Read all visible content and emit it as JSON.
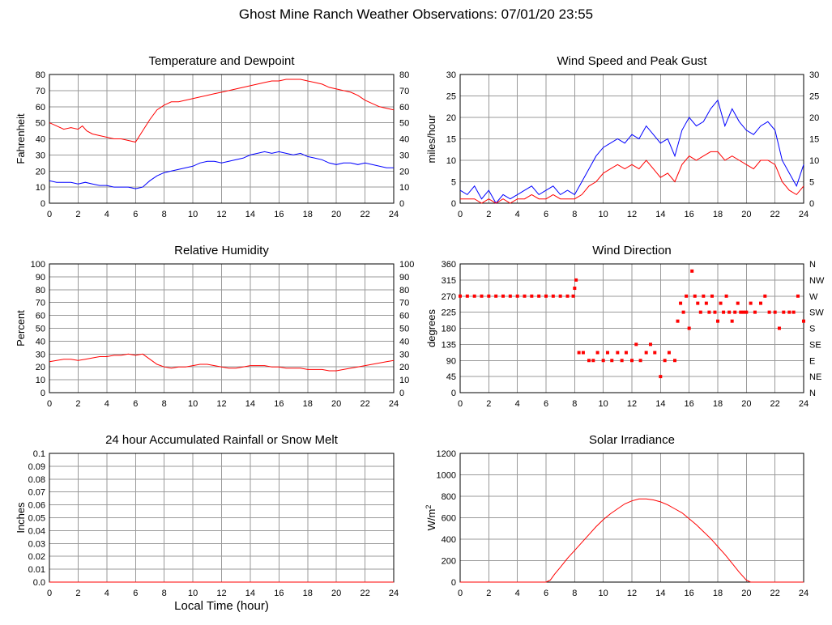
{
  "title": "Ghost Mine Ranch Weather Observations: 07/01/20 23:55",
  "chart_data": [
    {
      "id": "tempdew",
      "type": "line",
      "title": "Temperature and Dewpoint",
      "ylabel": "Fahrenheit",
      "xlabel": "",
      "xlim": [
        0,
        24
      ],
      "ylim": [
        0,
        80
      ],
      "xticks": [
        0,
        2,
        4,
        6,
        8,
        10,
        12,
        14,
        16,
        18,
        20,
        22,
        24
      ],
      "yticks": [
        0,
        10,
        20,
        30,
        40,
        50,
        60,
        70,
        80
      ],
      "right_yticks": [
        0,
        10,
        20,
        30,
        40,
        50,
        60,
        70,
        80
      ],
      "grid": true,
      "series": [
        {
          "color": "#ff0000",
          "x": [
            0,
            0.5,
            1,
            1.5,
            2,
            2.3,
            2.6,
            3,
            3.5,
            4,
            4.5,
            5,
            5.5,
            6,
            6.5,
            7,
            7.5,
            8,
            8.5,
            9,
            9.5,
            10,
            10.5,
            11,
            11.5,
            12,
            12.5,
            13,
            13.5,
            14,
            14.5,
            15,
            15.5,
            16,
            16.5,
            17,
            17.5,
            18,
            18.5,
            19,
            19.5,
            20,
            20.5,
            21,
            21.5,
            22,
            22.5,
            23,
            23.5,
            24
          ],
          "y": [
            50,
            48,
            46,
            47,
            46,
            48,
            45,
            43,
            42,
            41,
            40,
            40,
            39,
            38,
            45,
            52,
            58,
            61,
            63,
            63,
            64,
            65,
            66,
            67,
            68,
            69,
            70,
            71,
            72,
            73,
            74,
            75,
            76,
            76,
            77,
            77,
            77,
            76,
            75,
            74,
            72,
            71,
            70,
            69,
            67,
            64,
            62,
            60,
            59,
            58
          ]
        },
        {
          "color": "#0000ff",
          "x": [
            0,
            0.5,
            1,
            1.5,
            2,
            2.5,
            3,
            3.5,
            4,
            4.5,
            5,
            5.5,
            6,
            6.5,
            7,
            7.5,
            8,
            8.5,
            9,
            9.5,
            10,
            10.5,
            11,
            11.5,
            12,
            12.5,
            13,
            13.5,
            14,
            14.5,
            15,
            15.5,
            16,
            16.5,
            17,
            17.5,
            18,
            18.5,
            19,
            19.5,
            20,
            20.5,
            21,
            21.5,
            22,
            22.5,
            23,
            23.5,
            24
          ],
          "y": [
            14,
            13,
            13,
            13,
            12,
            13,
            12,
            11,
            11,
            10,
            10,
            10,
            9,
            10,
            14,
            17,
            19,
            20,
            21,
            22,
            23,
            25,
            26,
            26,
            25,
            26,
            27,
            28,
            30,
            31,
            32,
            31,
            32,
            31,
            30,
            31,
            29,
            28,
            27,
            25,
            24,
            25,
            25,
            24,
            25,
            24,
            23,
            22,
            22
          ]
        }
      ]
    },
    {
      "id": "wind",
      "type": "line",
      "title": "Wind Speed and Peak Gust",
      "ylabel": "miles/hour",
      "xlabel": "",
      "xlim": [
        0,
        24
      ],
      "ylim": [
        0,
        30
      ],
      "xticks": [
        0,
        2,
        4,
        6,
        8,
        10,
        12,
        14,
        16,
        18,
        20,
        22,
        24
      ],
      "yticks": [
        0,
        5,
        10,
        15,
        20,
        25,
        30
      ],
      "right_yticks": [
        0,
        5,
        10,
        15,
        20,
        25,
        30
      ],
      "grid": true,
      "series": [
        {
          "color": "#0000ff",
          "x": [
            0,
            0.5,
            1,
            1.5,
            2,
            2.5,
            3,
            3.5,
            4,
            4.5,
            5,
            5.5,
            6,
            6.5,
            7,
            7.5,
            8,
            8.5,
            9,
            9.5,
            10,
            10.5,
            11,
            11.5,
            12,
            12.5,
            13,
            13.5,
            14,
            14.5,
            15,
            15.5,
            16,
            16.5,
            17,
            17.5,
            18,
            18.5,
            19,
            19.5,
            20,
            20.5,
            21,
            21.5,
            22,
            22.5,
            23,
            23.5,
            24
          ],
          "y": [
            3,
            2,
            4,
            1,
            3,
            0,
            2,
            1,
            2,
            3,
            4,
            2,
            3,
            4,
            2,
            3,
            2,
            5,
            8,
            11,
            13,
            14,
            15,
            14,
            16,
            15,
            18,
            16,
            14,
            15,
            11,
            17,
            20,
            18,
            19,
            22,
            24,
            18,
            22,
            19,
            17,
            16,
            18,
            19,
            17,
            10,
            7,
            4,
            9
          ]
        },
        {
          "color": "#ff0000",
          "x": [
            0,
            0.5,
            1,
            1.5,
            2,
            2.5,
            3,
            3.5,
            4,
            4.5,
            5,
            5.5,
            6,
            6.5,
            7,
            7.5,
            8,
            8.5,
            9,
            9.5,
            10,
            10.5,
            11,
            11.5,
            12,
            12.5,
            13,
            13.5,
            14,
            14.5,
            15,
            15.5,
            16,
            16.5,
            17,
            17.5,
            18,
            18.5,
            19,
            19.5,
            20,
            20.5,
            21,
            21.5,
            22,
            22.5,
            23,
            23.5,
            24
          ],
          "y": [
            1,
            1,
            1,
            0,
            1,
            0,
            1,
            0,
            1,
            1,
            2,
            1,
            1,
            2,
            1,
            1,
            1,
            2,
            4,
            5,
            7,
            8,
            9,
            8,
            9,
            8,
            10,
            8,
            6,
            7,
            5,
            9,
            11,
            10,
            11,
            12,
            12,
            10,
            11,
            10,
            9,
            8,
            10,
            10,
            9,
            5,
            3,
            2,
            4
          ]
        }
      ]
    },
    {
      "id": "rh",
      "type": "line",
      "title": "Relative Humidity",
      "ylabel": "Percent",
      "xlabel": "",
      "xlim": [
        0,
        24
      ],
      "ylim": [
        0,
        100
      ],
      "xticks": [
        0,
        2,
        4,
        6,
        8,
        10,
        12,
        14,
        16,
        18,
        20,
        22,
        24
      ],
      "yticks": [
        0,
        10,
        20,
        30,
        40,
        50,
        60,
        70,
        80,
        90,
        100
      ],
      "right_yticks": [
        0,
        10,
        20,
        30,
        40,
        50,
        60,
        70,
        80,
        90,
        100
      ],
      "grid": true,
      "series": [
        {
          "color": "#ff0000",
          "x": [
            0,
            0.5,
            1,
            1.5,
            2,
            2.5,
            3,
            3.5,
            4,
            4.5,
            5,
            5.5,
            6,
            6.5,
            7,
            7.5,
            8,
            8.5,
            9,
            9.5,
            10,
            10.5,
            11,
            11.5,
            12,
            12.5,
            13,
            13.5,
            14,
            14.5,
            15,
            15.5,
            16,
            16.5,
            17,
            17.5,
            18,
            18.5,
            19,
            19.5,
            20,
            20.5,
            21,
            21.5,
            22,
            22.5,
            23,
            23.5,
            24
          ],
          "y": [
            24,
            25,
            26,
            26,
            25,
            26,
            27,
            28,
            28,
            29,
            29,
            30,
            29,
            30,
            26,
            22,
            20,
            19,
            20,
            20,
            21,
            22,
            22,
            21,
            20,
            19,
            19,
            20,
            21,
            21,
            21,
            20,
            20,
            19,
            19,
            19,
            18,
            18,
            18,
            17,
            17,
            18,
            19,
            20,
            21,
            22,
            23,
            24,
            25
          ]
        }
      ]
    },
    {
      "id": "winddir",
      "type": "scatter",
      "title": "Wind Direction",
      "ylabel": "degrees",
      "xlabel": "",
      "xlim": [
        0,
        24
      ],
      "ylim": [
        0,
        360
      ],
      "xticks": [
        0,
        2,
        4,
        6,
        8,
        10,
        12,
        14,
        16,
        18,
        20,
        22,
        24
      ],
      "yticks": [
        0,
        45,
        90,
        135,
        180,
        225,
        270,
        315,
        360
      ],
      "right_yticks": [
        "N",
        "NE",
        "E",
        "SE",
        "S",
        "SW",
        "W",
        "NW",
        "N"
      ],
      "grid": true,
      "series": [
        {
          "color": "#ff0000",
          "x": [
            0,
            0.5,
            1,
            1.5,
            2,
            2.5,
            3,
            3.5,
            4,
            4.5,
            5,
            5.5,
            6,
            6.5,
            7,
            7.5,
            7.9,
            8.0,
            8.1,
            8.3,
            8.6,
            9.0,
            9.3,
            9.6,
            10.0,
            10.3,
            10.6,
            11.0,
            11.3,
            11.6,
            12.0,
            12.3,
            12.6,
            13.0,
            13.3,
            13.6,
            14.0,
            14.3,
            14.6,
            15.0,
            15.2,
            15.4,
            15.6,
            15.8,
            16.0,
            16.2,
            16.4,
            16.6,
            16.8,
            17.0,
            17.2,
            17.4,
            17.6,
            17.8,
            18.0,
            18.2,
            18.4,
            18.6,
            18.8,
            19.0,
            19.2,
            19.4,
            19.6,
            19.8,
            20.0,
            20.3,
            20.6,
            21.0,
            21.3,
            21.6,
            22.0,
            22.3,
            22.6,
            23.0,
            23.3,
            23.6,
            24.0
          ],
          "y": [
            270,
            270,
            270,
            270,
            270,
            270,
            270,
            270,
            270,
            270,
            270,
            270,
            270,
            270,
            270,
            270,
            270,
            292,
            315,
            112,
            112,
            90,
            90,
            112,
            90,
            112,
            90,
            112,
            90,
            112,
            90,
            135,
            90,
            112,
            135,
            112,
            45,
            90,
            112,
            90,
            200,
            250,
            225,
            270,
            180,
            340,
            270,
            250,
            225,
            270,
            250,
            225,
            270,
            225,
            200,
            250,
            225,
            270,
            225,
            200,
            225,
            250,
            225,
            225,
            225,
            250,
            225,
            250,
            270,
            225,
            225,
            180,
            225,
            225,
            225,
            270,
            200
          ]
        }
      ]
    },
    {
      "id": "rain",
      "type": "line",
      "title": "24 hour Accumulated Rainfall or Snow Melt",
      "ylabel": "Inches",
      "xlabel": "Local Time (hour)",
      "xlim": [
        0,
        24
      ],
      "ylim": [
        0,
        0.1
      ],
      "xticks": [
        0,
        2,
        4,
        6,
        8,
        10,
        12,
        14,
        16,
        18,
        20,
        22,
        24
      ],
      "yticks": [
        "0.0",
        "0.01",
        "0.02",
        "0.03",
        "0.04",
        "0.05",
        "0.06",
        "0.07",
        "0.08",
        "0.09",
        "0.1"
      ],
      "grid": true,
      "series": [
        {
          "color": "#ff0000",
          "x": [
            0,
            24
          ],
          "y": [
            0,
            0
          ]
        }
      ]
    },
    {
      "id": "solar",
      "type": "line",
      "title": "Solar Irradiance",
      "ylabel": "W/m",
      "ylabel_sup": "2",
      "xlabel": "",
      "xlim": [
        0,
        24
      ],
      "ylim": [
        0,
        1300
      ],
      "xticks": [
        0,
        2,
        4,
        6,
        8,
        10,
        12,
        14,
        16,
        18,
        20,
        22,
        24
      ],
      "yticks": [
        0,
        200,
        400,
        600,
        800,
        1000,
        1200
      ],
      "grid": true,
      "series": [
        {
          "color": "#ff0000",
          "x": [
            0,
            6,
            6.3,
            6.6,
            7,
            7.5,
            8,
            8.5,
            9,
            9.5,
            10,
            10.5,
            11,
            11.5,
            12,
            12.5,
            13,
            13.5,
            14,
            14.5,
            15,
            15.5,
            16,
            16.5,
            17,
            17.5,
            18,
            18.5,
            19,
            19.5,
            20,
            20.3,
            21,
            22,
            24
          ],
          "y": [
            0,
            0,
            20,
            80,
            150,
            240,
            320,
            400,
            480,
            560,
            630,
            690,
            740,
            790,
            820,
            840,
            840,
            830,
            810,
            780,
            740,
            700,
            640,
            580,
            510,
            440,
            360,
            280,
            190,
            100,
            20,
            0,
            0,
            0,
            0
          ]
        }
      ]
    }
  ]
}
